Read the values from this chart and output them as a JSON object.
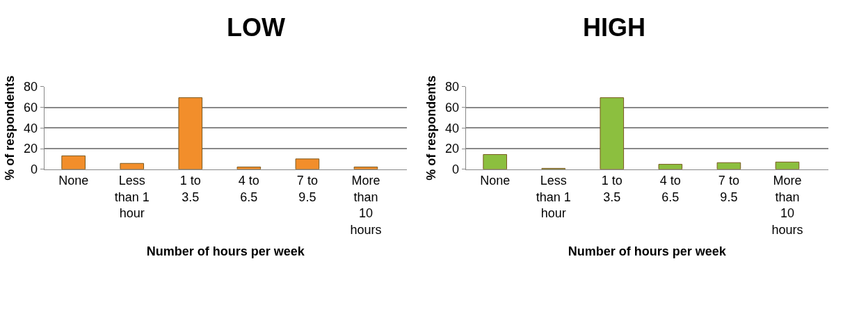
{
  "chart_data": [
    {
      "type": "bar",
      "title": "LOW",
      "xlabel": "Number of hours per week",
      "ylabel": "% of respondents",
      "categories": [
        "None",
        "Less than 1 hour",
        "1 to 3.5",
        "4 to 6.5",
        "7 to 9.5",
        "More than 10 hours"
      ],
      "series": [
        {
          "color": "#f28e2b",
          "values": [
            13,
            5.7,
            69.3,
            2.2,
            10,
            2.2
          ]
        }
      ],
      "ylim": [
        0,
        80
      ],
      "yticks": [
        0,
        20,
        40,
        60,
        80
      ],
      "grid": "y"
    },
    {
      "type": "bar",
      "title": "HIGH",
      "xlabel": "Number of hours per week",
      "ylabel": "% of respondents",
      "categories": [
        "None",
        "Less than 1 hour",
        "1 to 3.5",
        "4 to 6.5",
        "7 to 9.5",
        "More than 10 hours"
      ],
      "series": [
        {
          "color": "#8cbf3f",
          "values": [
            14.3,
            0.9,
            69.3,
            4.8,
            6.4,
            7
          ]
        }
      ],
      "ylim": [
        0,
        80
      ],
      "yticks": [
        0,
        20,
        40,
        60,
        80
      ],
      "grid": "y"
    }
  ]
}
